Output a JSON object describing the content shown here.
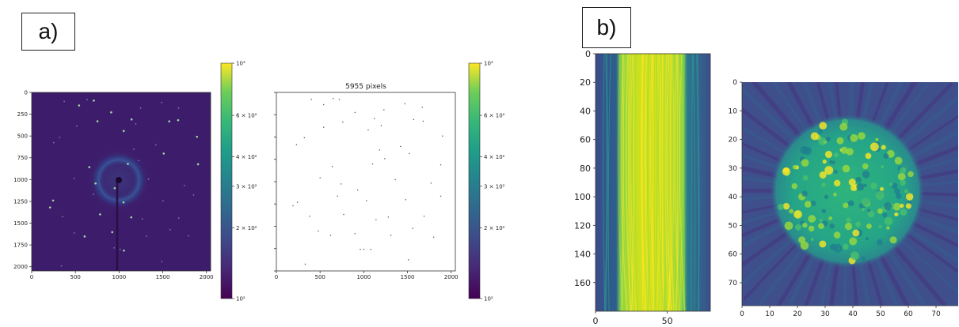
{
  "panels": {
    "a": {
      "label": "a)"
    },
    "b": {
      "label": "b)"
    }
  },
  "chart_data": [
    {
      "id": "a-left",
      "type": "heatmap",
      "title": "",
      "xlabel": "",
      "ylabel": "",
      "x_ticks": [
        "0",
        "500",
        "1000",
        "1500",
        "2000"
      ],
      "y_ticks": [
        "0",
        "250",
        "500",
        "750",
        "1000",
        "1250",
        "1500",
        "1750",
        "2000"
      ],
      "xlim": [
        0,
        2048
      ],
      "ylim": [
        2048,
        0
      ],
      "colormap": "viridis",
      "description": "diffraction detector image: dark background, central beam stop at about (1000, 1000) with a thin vertical shadow, a faint ring of radius ~220, scattered Bragg spots",
      "beam_center": [
        1000,
        1000
      ],
      "ring_radius": 220
    },
    {
      "id": "a-colorbar-1",
      "type": "colorbar",
      "scale": "log",
      "range": [
        100,
        1000
      ],
      "ticks": [
        {
          "value": 1000,
          "label": "10³"
        },
        {
          "value": 600,
          "label": "6 × 10²"
        },
        {
          "value": 400,
          "label": "4 × 10²"
        },
        {
          "value": 300,
          "label": "3 × 10²"
        },
        {
          "value": 200,
          "label": "2 × 10²"
        },
        {
          "value": 100,
          "label": "10²"
        }
      ]
    },
    {
      "id": "a-middle",
      "type": "scatter",
      "title": "5955 pixels",
      "xlabel": "",
      "ylabel": "",
      "x_ticks": [
        "0",
        "500",
        "1000",
        "1500",
        "2000"
      ],
      "xlim": [
        0,
        2048
      ],
      "ylim": [
        2048,
        0
      ],
      "points": [
        [
          400,
          80
        ],
        [
          650,
          70
        ],
        [
          720,
          80
        ],
        [
          540,
          140
        ],
        [
          1470,
          130
        ],
        [
          1670,
          170
        ],
        [
          900,
          230
        ],
        [
          1230,
          200
        ],
        [
          1120,
          300
        ],
        [
          1570,
          310
        ],
        [
          760,
          340
        ],
        [
          1200,
          380
        ],
        [
          1680,
          330
        ],
        [
          1050,
          430
        ],
        [
          540,
          400
        ],
        [
          320,
          520
        ],
        [
          230,
          600
        ],
        [
          1900,
          500
        ],
        [
          1420,
          620
        ],
        [
          1180,
          660
        ],
        [
          1520,
          700
        ],
        [
          1240,
          760
        ],
        [
          640,
          850
        ],
        [
          1100,
          820
        ],
        [
          1880,
          830
        ],
        [
          500,
          980
        ],
        [
          740,
          1050
        ],
        [
          930,
          1120
        ],
        [
          1360,
          1000
        ],
        [
          1770,
          1040
        ],
        [
          700,
          1190
        ],
        [
          240,
          1260
        ],
        [
          1030,
          1240
        ],
        [
          1480,
          1230
        ],
        [
          1880,
          1190
        ],
        [
          380,
          1420
        ],
        [
          770,
          1400
        ],
        [
          1280,
          1430
        ],
        [
          1690,
          1420
        ],
        [
          1140,
          1460
        ],
        [
          480,
          1590
        ],
        [
          900,
          1620
        ],
        [
          1310,
          1640
        ],
        [
          960,
          1800
        ],
        [
          1080,
          1800
        ],
        [
          1000,
          1800
        ],
        [
          1510,
          1920
        ],
        [
          330,
          1970
        ],
        [
          190,
          1300
        ],
        [
          1560,
          1560
        ],
        [
          620,
          1640
        ],
        [
          1800,
          1660
        ]
      ]
    },
    {
      "id": "a-colorbar-2",
      "type": "colorbar",
      "scale": "log",
      "range": [
        100,
        1000
      ],
      "ticks": [
        {
          "value": 1000,
          "label": "10³"
        },
        {
          "value": 600,
          "label": "6 × 10²"
        },
        {
          "value": 400,
          "label": "4 × 10²"
        },
        {
          "value": 300,
          "label": "3 × 10²"
        },
        {
          "value": 200,
          "label": "2 × 10²"
        },
        {
          "value": 100,
          "label": "10²"
        }
      ]
    },
    {
      "id": "b-left",
      "type": "heatmap",
      "title": "",
      "xlabel": "",
      "ylabel": "",
      "x_ticks": [
        "0",
        "50"
      ],
      "y_ticks": [
        "0",
        "20",
        "40",
        "60",
        "80",
        "100",
        "120",
        "140",
        "160"
      ],
      "xlim": [
        0,
        80
      ],
      "ylim": [
        180,
        0
      ],
      "colormap": "viridis",
      "description": "sinogram: bright yellow-green vertical band between x≈17 and x≈62, dark blue outside",
      "band": [
        17,
        62
      ]
    },
    {
      "id": "b-right",
      "type": "heatmap",
      "title": "",
      "xlabel": "",
      "ylabel": "",
      "x_ticks": [
        "0",
        "10",
        "20",
        "30",
        "40",
        "50",
        "60",
        "70"
      ],
      "y_ticks": [
        "0",
        "10",
        "20",
        "30",
        "40",
        "50",
        "60",
        "70"
      ],
      "xlim": [
        0,
        78
      ],
      "ylim": [
        78,
        0
      ],
      "colormap": "viridis",
      "description": "tomographic reconstruction: textured bright disc centered near (38, 38), radius ~27, on a blue background with radial streaks",
      "disc_center": [
        38,
        38
      ],
      "disc_radius": 27
    }
  ]
}
